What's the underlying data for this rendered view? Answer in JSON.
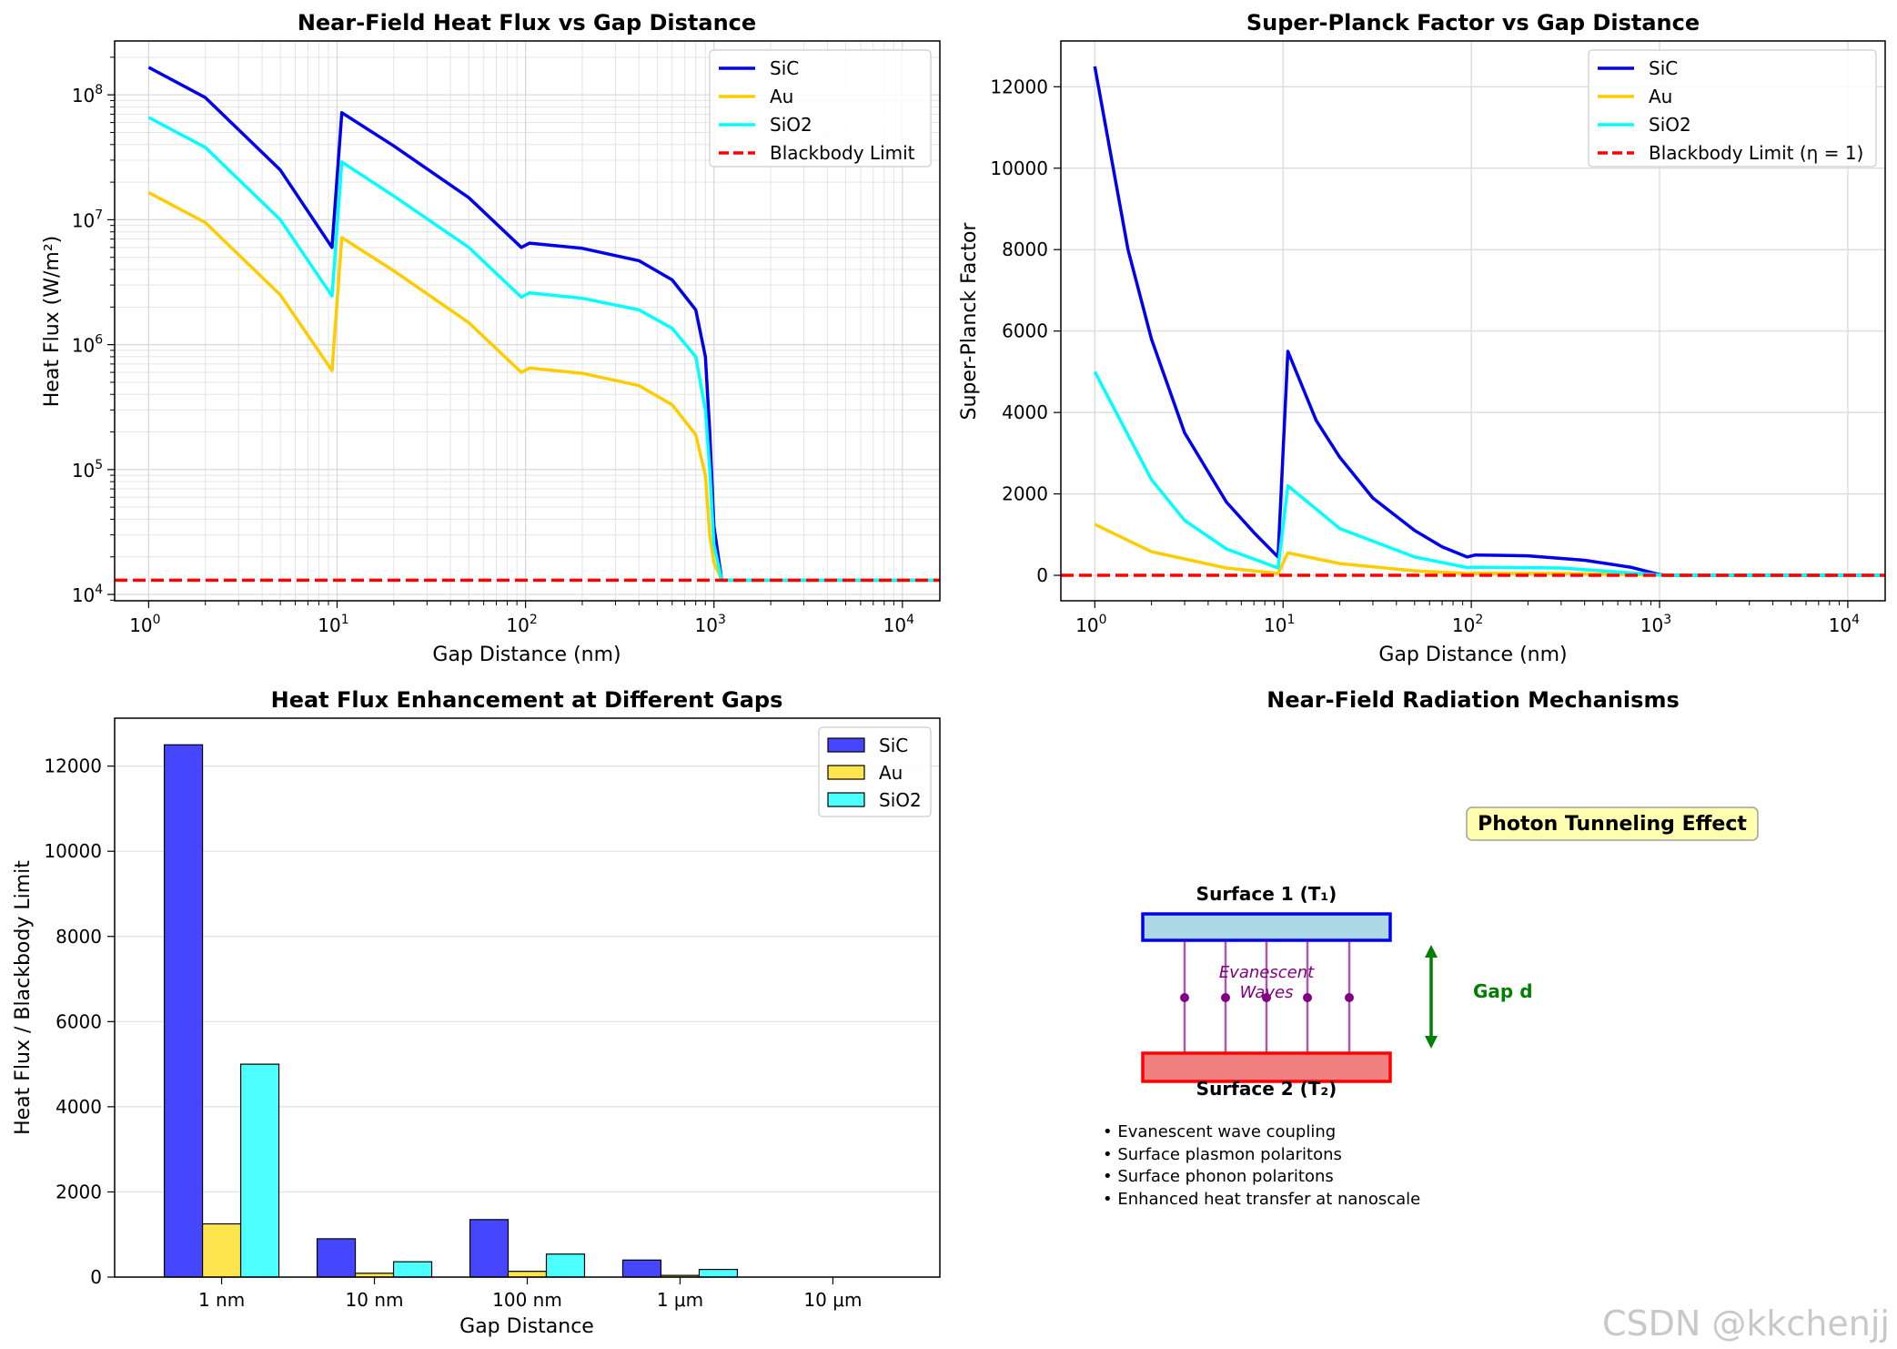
{
  "chart_data": [
    {
      "type": "line",
      "title": "Near-Field Heat Flux vs Gap Distance",
      "xlabel": "Gap Distance (nm)",
      "ylabel": "Heat Flux (W/m²)",
      "xscale": "log",
      "yscale": "log",
      "xlim": [
        0.66,
        15800
      ],
      "ylim": [
        8900,
        270000000
      ],
      "xticks": [
        {
          "v": 1,
          "b": "10",
          "e": "0"
        },
        {
          "v": 10,
          "b": "10",
          "e": "1"
        },
        {
          "v": 100,
          "b": "10",
          "e": "2"
        },
        {
          "v": 1000,
          "b": "10",
          "e": "3"
        },
        {
          "v": 10000,
          "b": "10",
          "e": "4"
        }
      ],
      "yticks": [
        {
          "v": 10000,
          "b": "10",
          "e": "4"
        },
        {
          "v": 100000,
          "b": "10",
          "e": "5"
        },
        {
          "v": 1000000,
          "b": "10",
          "e": "6"
        },
        {
          "v": 10000000,
          "b": "10",
          "e": "7"
        },
        {
          "v": 100000000,
          "b": "10",
          "e": "8"
        }
      ],
      "grid": true,
      "legend_position": "top-right",
      "series": [
        {
          "name": "SiC",
          "color": "#0000ee",
          "style": "solid",
          "x": [
            1,
            2,
            5,
            9.4,
            10.6,
            20,
            50,
            95,
            105,
            200,
            400,
            600,
            800,
            900,
            950,
            1000,
            1100,
            15000
          ],
          "y": [
            166000000,
            95000000,
            25000000,
            6000000,
            72000000,
            39000000,
            15000000,
            6000000,
            6500000,
            5900000,
            4700000,
            3300000,
            1900000,
            800000,
            200000,
            35000,
            13000,
            13000
          ]
        },
        {
          "name": "Au",
          "color": "#ffcc00",
          "style": "solid",
          "x": [
            1,
            2,
            5,
            9.4,
            10.6,
            20,
            50,
            95,
            105,
            200,
            400,
            600,
            800,
            900,
            950,
            1000,
            1100,
            15000
          ],
          "y": [
            16500000,
            9500000,
            2500000,
            620000,
            7200000,
            3900000,
            1500000,
            600000,
            650000,
            590000,
            470000,
            330000,
            190000,
            90000,
            30000,
            18000,
            13000,
            13000
          ]
        },
        {
          "name": "SiO2",
          "color": "#00ffff",
          "style": "solid",
          "x": [
            1,
            2,
            5,
            9.4,
            10.6,
            20,
            50,
            95,
            105,
            200,
            400,
            600,
            800,
            900,
            950,
            1000,
            1100,
            15000
          ],
          "y": [
            66000000,
            38000000,
            10000000,
            2450000,
            29000000,
            15500000,
            6000000,
            2400000,
            2600000,
            2350000,
            1900000,
            1350000,
            800000,
            300000,
            100000,
            25000,
            13000,
            13000
          ]
        },
        {
          "name": "Blackbody Limit",
          "color": "#ff0000",
          "style": "dashed",
          "x": [
            0.66,
            15800
          ],
          "y": [
            13000,
            13000
          ]
        }
      ]
    },
    {
      "type": "line",
      "title": "Super-Planck Factor vs Gap Distance",
      "xlabel": "Gap Distance (nm)",
      "ylabel": "Super-Planck Factor",
      "xscale": "log",
      "yscale": "linear",
      "xlim": [
        0.66,
        15800
      ],
      "ylim": [
        -625,
        13125
      ],
      "xticks": [
        {
          "v": 1,
          "b": "10",
          "e": "0"
        },
        {
          "v": 10,
          "b": "10",
          "e": "1"
        },
        {
          "v": 100,
          "b": "10",
          "e": "2"
        },
        {
          "v": 1000,
          "b": "10",
          "e": "3"
        },
        {
          "v": 10000,
          "b": "10",
          "e": "4"
        }
      ],
      "yticks": [
        {
          "v": 0,
          "l": "0"
        },
        {
          "v": 2000,
          "l": "2000"
        },
        {
          "v": 4000,
          "l": "4000"
        },
        {
          "v": 6000,
          "l": "6000"
        },
        {
          "v": 8000,
          "l": "8000"
        },
        {
          "v": 10000,
          "l": "10000"
        },
        {
          "v": 12000,
          "l": "12000"
        }
      ],
      "grid": true,
      "legend_position": "top-right",
      "series": [
        {
          "name": "SiC",
          "color": "#0000ee",
          "style": "solid",
          "x": [
            1,
            1.5,
            2,
            3,
            5,
            7,
            9.4,
            10.6,
            15,
            20,
            30,
            50,
            70,
            95,
            105,
            200,
            400,
            700,
            1000,
            1100,
            15000
          ],
          "y": [
            12500,
            8000,
            5800,
            3500,
            1800,
            1050,
            450,
            5500,
            3800,
            2900,
            1900,
            1100,
            700,
            450,
            500,
            480,
            370,
            200,
            20,
            0,
            0
          ]
        },
        {
          "name": "Au",
          "color": "#ffcc00",
          "style": "solid",
          "x": [
            1,
            2,
            5,
            9.4,
            10.6,
            20,
            50,
            95,
            105,
            300,
            1000,
            1100,
            15000
          ],
          "y": [
            1250,
            580,
            180,
            45,
            550,
            290,
            110,
            45,
            50,
            45,
            5,
            0,
            0
          ]
        },
        {
          "name": "SiO2",
          "color": "#00ffff",
          "style": "solid",
          "x": [
            1,
            2,
            3,
            5,
            9.4,
            10.6,
            20,
            50,
            95,
            105,
            300,
            1000,
            1100,
            15000
          ],
          "y": [
            5000,
            2350,
            1350,
            650,
            180,
            2200,
            1150,
            450,
            190,
            200,
            180,
            10,
            0,
            0
          ]
        },
        {
          "name": "Blackbody Limit (η = 1)",
          "color": "#ff0000",
          "style": "dashed",
          "x": [
            0.66,
            15800
          ],
          "y": [
            0,
            0
          ]
        }
      ]
    },
    {
      "type": "bar",
      "title": "Heat Flux Enhancement at Different Gaps",
      "xlabel": "Gap Distance",
      "ylabel": "Heat Flux / Blackbody Limit",
      "ylim": [
        0,
        13125
      ],
      "categories": [
        "1 nm",
        "10 nm",
        "100 nm",
        "1 μm",
        "10 μm"
      ],
      "yticks": [
        {
          "v": 0,
          "l": "0"
        },
        {
          "v": 2000,
          "l": "2000"
        },
        {
          "v": 4000,
          "l": "4000"
        },
        {
          "v": 6000,
          "l": "6000"
        },
        {
          "v": 8000,
          "l": "8000"
        },
        {
          "v": 10000,
          "l": "10000"
        },
        {
          "v": 12000,
          "l": "12000"
        }
      ],
      "grid": true,
      "legend_position": "top-right",
      "series": [
        {
          "name": "SiC",
          "color": "#4646ff",
          "values": [
            12500,
            900,
            1350,
            400,
            0
          ]
        },
        {
          "name": "Au",
          "color": "#ffe54d",
          "values": [
            1250,
            90,
            135,
            40,
            0
          ]
        },
        {
          "name": "SiO2",
          "color": "#4dffff",
          "values": [
            5000,
            360,
            540,
            180,
            0
          ]
        }
      ]
    }
  ],
  "diagram": {
    "title": "Near-Field Radiation Mechanisms",
    "badge": "Photon Tunneling Effect",
    "surface1_label": "Surface 1 (T₁)",
    "surface2_label": "Surface 2 (T₂)",
    "waves_label_line1": "Evanescent",
    "waves_label_line2": "Waves",
    "gap_label": "Gap d",
    "bullets": [
      "• Evanescent wave coupling",
      "• Surface plasmon polaritons",
      "• Surface phonon polaritons",
      "• Enhanced heat transfer at nanoscale"
    ],
    "colors": {
      "surface1_fill": "#add8e6",
      "surface1_stroke": "#0000ee",
      "surface2_fill": "#f08080",
      "surface2_stroke": "#ff0000",
      "waves": "#800080",
      "gap_arrow": "#008000",
      "badge_fill": "#ffffb0"
    }
  },
  "watermark": "CSDN @kkchenjj"
}
